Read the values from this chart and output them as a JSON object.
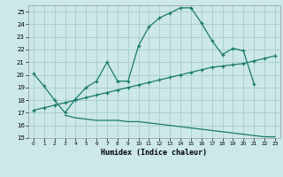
{
  "title": "",
  "xlabel": "Humidex (Indice chaleur)",
  "ylabel": "",
  "bg_color": "#cce8e8",
  "grid_color": "#aad0d0",
  "line_color": "#1a7a6a",
  "ylim": [
    15,
    25.5
  ],
  "xlim": [
    -0.5,
    23.5
  ],
  "yticks": [
    15,
    16,
    17,
    18,
    19,
    20,
    21,
    22,
    23,
    24,
    25
  ],
  "xticks": [
    0,
    1,
    2,
    3,
    4,
    5,
    6,
    7,
    8,
    9,
    10,
    11,
    12,
    13,
    14,
    15,
    16,
    17,
    18,
    19,
    20,
    21,
    22,
    23
  ],
  "curve1_x": [
    0,
    1,
    2,
    3,
    4,
    5,
    6,
    7,
    8,
    9,
    10,
    11,
    12,
    13,
    14,
    15,
    16,
    17,
    18,
    19,
    20,
    21
  ],
  "curve1_y": [
    20.1,
    19.1,
    18.0,
    17.0,
    18.1,
    19.0,
    19.5,
    21.0,
    19.5,
    19.5,
    22.3,
    23.8,
    24.5,
    24.9,
    25.3,
    25.3,
    24.1,
    22.7,
    21.6,
    22.1,
    21.9,
    19.3
  ],
  "curve2_x": [
    0,
    1,
    2,
    3,
    4,
    5,
    6,
    7,
    8,
    9,
    10,
    11,
    12,
    13,
    14,
    15,
    16,
    17,
    18,
    19,
    20,
    21,
    22,
    23
  ],
  "curve2_y": [
    17.2,
    17.4,
    17.6,
    17.8,
    18.0,
    18.2,
    18.4,
    18.6,
    18.8,
    19.0,
    19.2,
    19.4,
    19.6,
    19.8,
    20.0,
    20.2,
    20.4,
    20.6,
    20.7,
    20.8,
    20.9,
    21.1,
    21.3,
    21.5
  ],
  "curve3_x": [
    3,
    4,
    5,
    6,
    7,
    8,
    9,
    10,
    11,
    12,
    13,
    14,
    15,
    16,
    17,
    18,
    19,
    20,
    21,
    22,
    23
  ],
  "curve3_y": [
    16.8,
    16.6,
    16.5,
    16.4,
    16.4,
    16.4,
    16.3,
    16.3,
    16.2,
    16.1,
    16.0,
    15.9,
    15.8,
    15.7,
    15.6,
    15.5,
    15.4,
    15.3,
    15.2,
    15.1,
    15.1
  ]
}
